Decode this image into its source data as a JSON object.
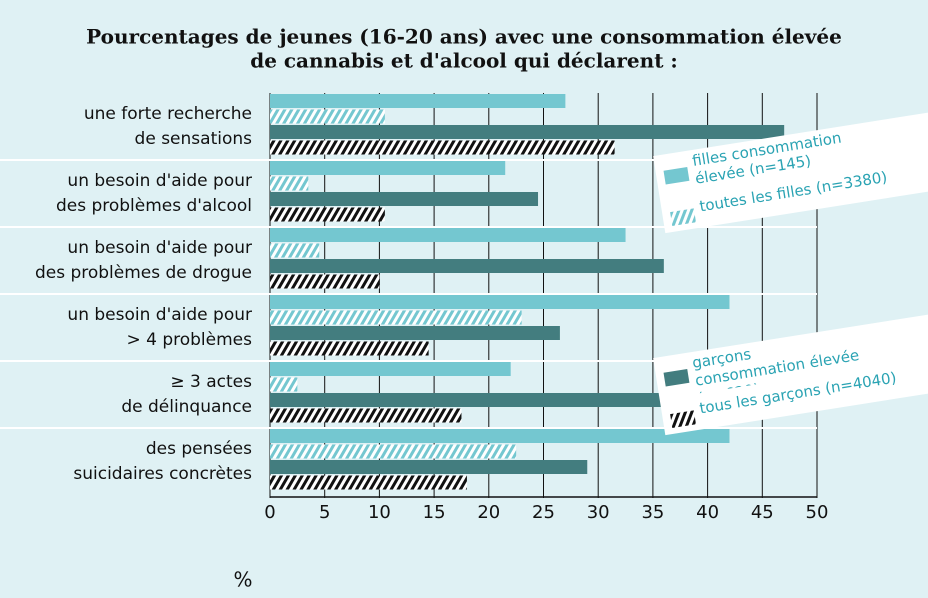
{
  "chart_data": {
    "type": "barh",
    "title": [
      "Pourcentages de jeunes (16-20 ans) avec une consommation élevée",
      "de cannabis et d'alcool qui déclarent :"
    ],
    "categories": [
      [
        "une forte recherche",
        "de sensations"
      ],
      [
        "un besoin d'aide pour",
        "des problèmes d'alcool"
      ],
      [
        "un besoin d'aide pour",
        "des problèmes de drogue"
      ],
      [
        "un besoin d'aide pour",
        "> 4 problèmes"
      ],
      [
        "≥ 3 actes",
        "de délinquance"
      ],
      [
        "des pensées",
        "suicidaires concrètes"
      ]
    ],
    "series": [
      {
        "name": "filles consommation élevée (n=145)",
        "color": "#74c7d0",
        "pattern": "solid",
        "values": [
          27,
          21.5,
          32.5,
          42,
          22,
          42
        ]
      },
      {
        "name": "toutes les filles (n=3380)",
        "color": "#74c7d0",
        "pattern": "hatch",
        "values": [
          10.5,
          3.5,
          4.5,
          23,
          2.5,
          22.5
        ]
      },
      {
        "name": "garçons consommation élevée (n=620)",
        "color": "#437d7f",
        "pattern": "solid",
        "values": [
          47,
          24.5,
          36,
          26.5,
          42.5,
          29
        ]
      },
      {
        "name": "tous les garçons (n=4040)",
        "color": "#111111",
        "pattern": "hatch",
        "values": [
          31.5,
          10.5,
          10,
          14.5,
          17.5,
          18
        ]
      }
    ],
    "xlabel": "%",
    "xlim": [
      0,
      50
    ],
    "xticks": [
      0,
      5,
      10,
      15,
      20,
      25,
      30,
      35,
      40,
      45,
      50
    ],
    "grid": true
  }
}
